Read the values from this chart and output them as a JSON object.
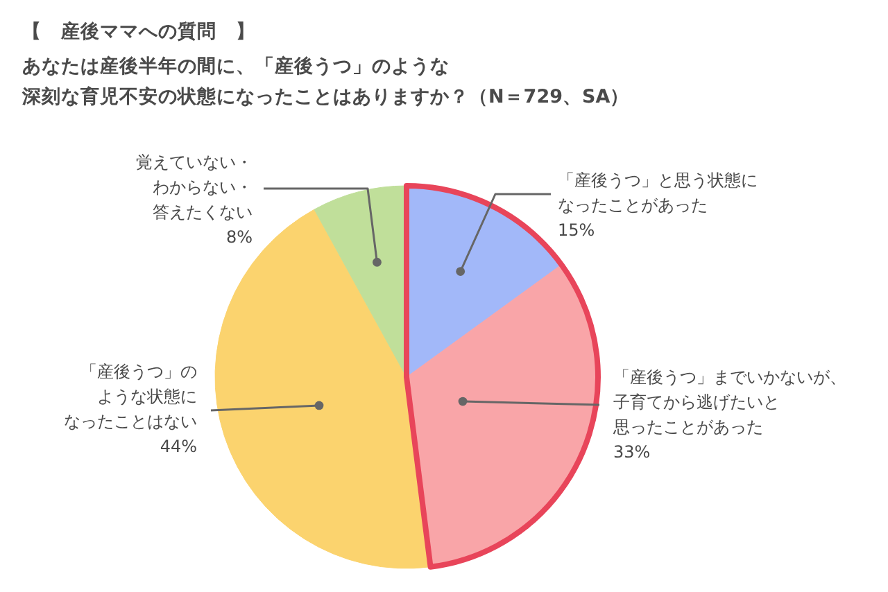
{
  "chart_data": {
    "type": "pie",
    "title": "【　産後ママへの質問　】",
    "subtitle": "あなたは産後半年の間に、「産後うつ」のような深刻な育児不安の状態になったことはありますか？（N＝729、SA）",
    "categories": [
      "「産後うつ」と思う状態になったことがあった",
      "「産後うつ」までいかないが、子育てから逃げたいと思ったことがあった",
      "「産後うつ」のような状態になったことはない",
      "覚えていない・わからない・答えたくない"
    ],
    "values": [
      15,
      33,
      44,
      8
    ],
    "colors": [
      "#a2b8f9",
      "#f9a5a8",
      "#fbd36e",
      "#c0df9a"
    ],
    "value_labels": [
      "15%",
      "33%",
      "44%",
      "8%"
    ]
  }
}
